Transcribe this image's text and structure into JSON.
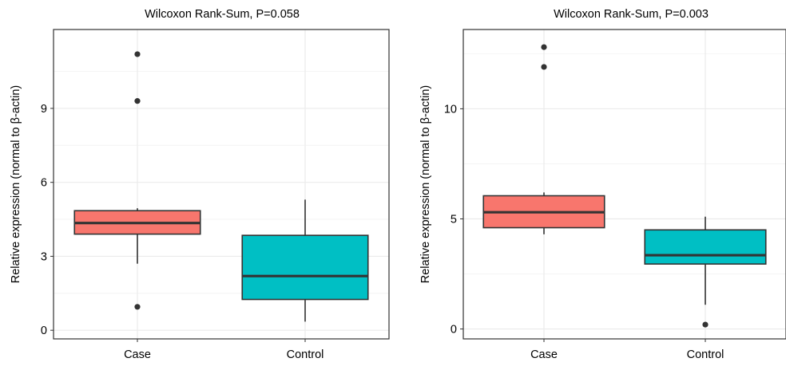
{
  "chart_data": [
    {
      "type": "boxplot",
      "title": "Wilcoxon Rank-Sum, P=0.058",
      "ylabel": "Relative expression (normal to β-actin)",
      "xlabel": "",
      "ylim": [
        -0.35,
        12.2
      ],
      "yticks": [
        0,
        3,
        6,
        9
      ],
      "grid": true,
      "categories": [
        "Case",
        "Control"
      ],
      "boxes": [
        {
          "category": "Case",
          "q1": 3.9,
          "median": 4.35,
          "q3": 4.85,
          "whisker_low": 2.7,
          "whisker_high": 4.95,
          "outliers": [
            0.95,
            9.3,
            11.2
          ],
          "color": "#F8766D"
        },
        {
          "category": "Control",
          "q1": 1.25,
          "median": 2.2,
          "q3": 3.85,
          "whisker_low": 0.35,
          "whisker_high": 5.3,
          "outliers": [],
          "color": "#00BFC4"
        }
      ]
    },
    {
      "type": "boxplot",
      "title": "Wilcoxon Rank-Sum, P=0.003",
      "ylabel": "Relative expression (normal to β-actin)",
      "xlabel": "",
      "ylim": [
        -0.45,
        13.6
      ],
      "yticks": [
        0,
        5,
        10
      ],
      "grid": true,
      "categories": [
        "Case",
        "Control"
      ],
      "boxes": [
        {
          "category": "Case",
          "q1": 4.6,
          "median": 5.3,
          "q3": 6.05,
          "whisker_low": 4.3,
          "whisker_high": 6.2,
          "outliers": [
            11.9,
            12.8
          ],
          "color": "#F8766D"
        },
        {
          "category": "Control",
          "q1": 2.95,
          "median": 3.35,
          "q3": 4.5,
          "whisker_low": 1.1,
          "whisker_high": 5.1,
          "outliers": [
            0.2
          ],
          "color": "#00BFC4"
        }
      ]
    }
  ]
}
